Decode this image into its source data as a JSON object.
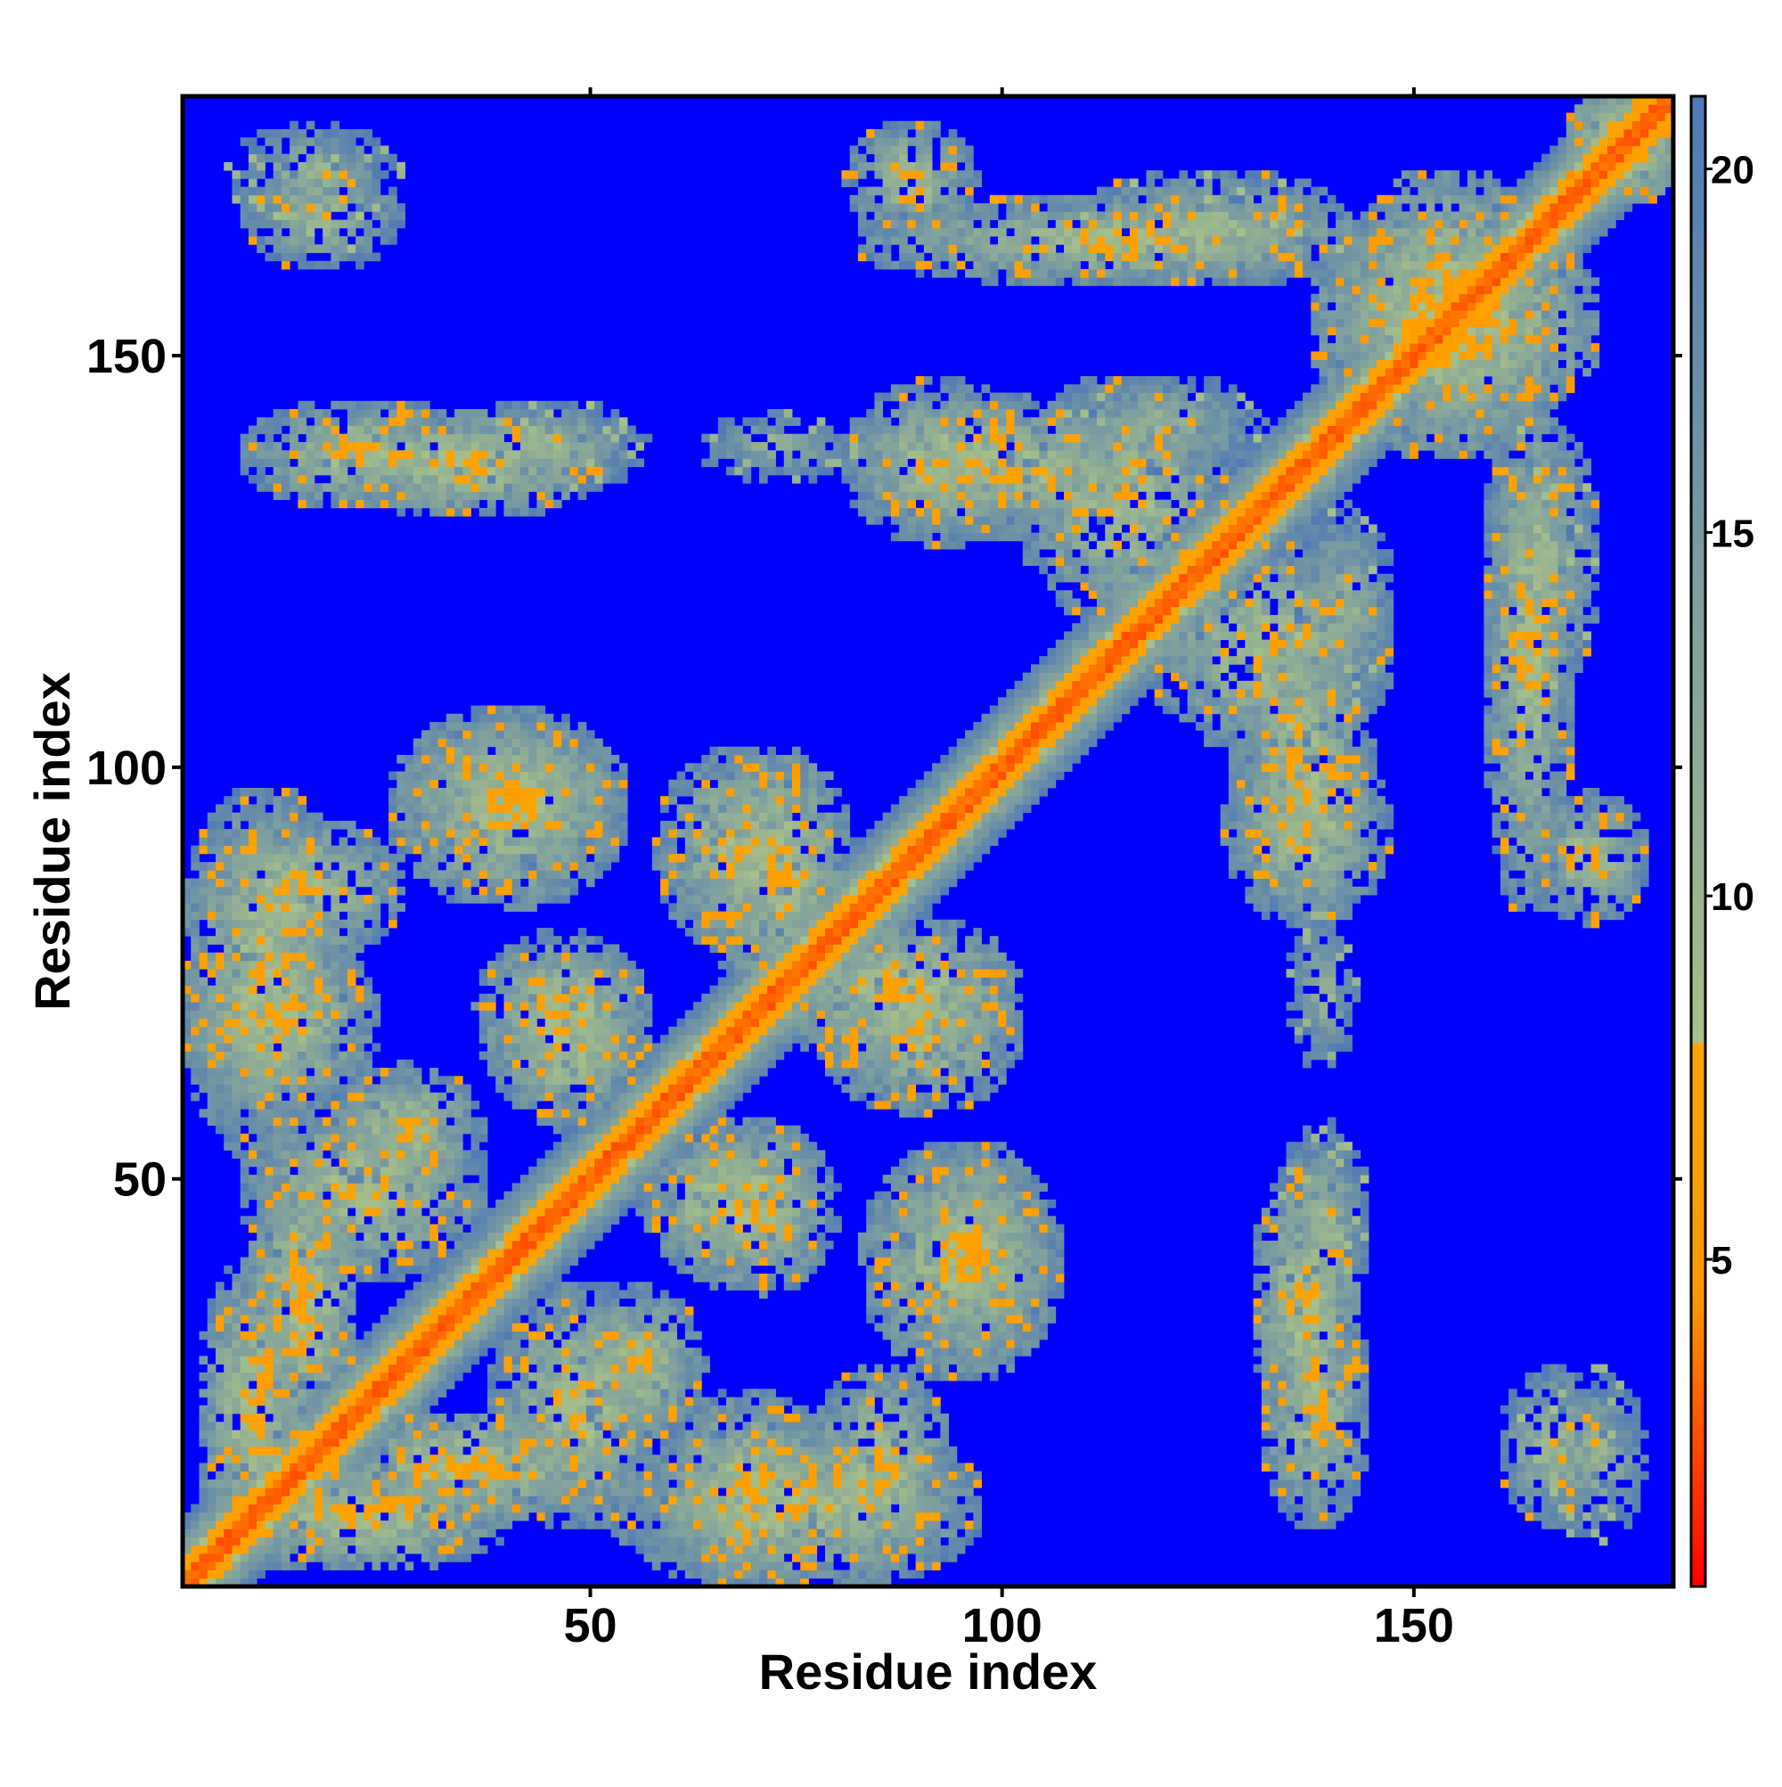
{
  "chart_data": {
    "type": "heatmap",
    "title": "",
    "xlabel": "Residue index",
    "ylabel": "Residue index",
    "n_residues": 181,
    "xlim": [
      1,
      181
    ],
    "ylim": [
      1,
      181
    ],
    "x_ticks": [
      50,
      100,
      150
    ],
    "y_ticks": [
      50,
      100,
      150
    ],
    "colorbar": {
      "range": [
        0.5,
        21
      ],
      "ticks": [
        5,
        10,
        15,
        20
      ],
      "cutoff": 8,
      "colors": {
        "low": "#ff0000",
        "mid_low": "#ff9900",
        "contact_edge": "#ffa500",
        "high_start": "#a8c08a",
        "high_end": "#4f79b5",
        "background": "#0000ff"
      }
    },
    "value_scale": "distance",
    "diagonal": {
      "band_width_residues": 3,
      "core_value": 2.5
    },
    "contact_regions": [
      {
        "x": [
          4,
          14
        ],
        "y": [
          5,
          38
        ],
        "peak": 6.5
      },
      {
        "x": [
          10,
          20
        ],
        "y": [
          20,
          50
        ],
        "peak": 6
      },
      {
        "x": [
          2,
          18
        ],
        "y": [
          55,
          95
        ],
        "peak": 7
      },
      {
        "x": [
          20,
          35
        ],
        "y": [
          50,
          62
        ],
        "peak": 7
      },
      {
        "x": [
          30,
          52
        ],
        "y": [
          90,
          104
        ],
        "peak": 6.5
      },
      {
        "x": [
          38,
          55
        ],
        "y": [
          62,
          78
        ],
        "peak": 6.5
      },
      {
        "x": [
          40,
          58
        ],
        "y": [
          10,
          35
        ],
        "peak": 7
      },
      {
        "x": [
          58,
          72
        ],
        "y": [
          40,
          55
        ],
        "peak": 7
      },
      {
        "x": [
          60,
          78
        ],
        "y": [
          2,
          22
        ],
        "peak": 6.5
      },
      {
        "x": [
          60,
          75
        ],
        "y": [
          80,
          100
        ],
        "peak": 7
      },
      {
        "x": [
          75,
          100
        ],
        "y": [
          65,
          80
        ],
        "peak": 6
      },
      {
        "x": [
          78,
          92
        ],
        "y": [
          5,
          25
        ],
        "peak": 6.5
      },
      {
        "x": [
          85,
          105
        ],
        "y": [
          28,
          52
        ],
        "peak": 6.5
      },
      {
        "x": [
          8,
          25
        ],
        "y": [
          167,
          177
        ],
        "peak": 9.5
      },
      {
        "x": [
          10,
          35
        ],
        "y": [
          133,
          143
        ],
        "peak": 7
      },
      {
        "x": [
          35,
          55
        ],
        "y": [
          135,
          143
        ],
        "peak": 9
      },
      {
        "x": [
          65,
          80
        ],
        "y": [
          136,
          142
        ],
        "peak": 10
      },
      {
        "x": [
          83,
          102
        ],
        "y": [
          129,
          145
        ],
        "peak": 7
      },
      {
        "x": [
          83,
          95
        ],
        "y": [
          166,
          177
        ],
        "peak": 7
      },
      {
        "x": [
          104,
          125
        ],
        "y": [
          120,
          145
        ],
        "peak": 7
      },
      {
        "x": [
          110,
          140
        ],
        "y": [
          160,
          171
        ],
        "peak": 8
      },
      {
        "x": [
          130,
          143
        ],
        "y": [
          85,
          115
        ],
        "peak": 6.5
      },
      {
        "x": [
          132,
          142
        ],
        "y": [
          20,
          50
        ],
        "peak": 6.5
      },
      {
        "x": [
          137,
          146
        ],
        "y": [
          110,
          130
        ],
        "peak": 9
      },
      {
        "x": [
          143,
          165
        ],
        "y": [
          140,
          170
        ],
        "peak": 5.5
      },
      {
        "x": [
          160,
          168
        ],
        "y": [
          85,
          145
        ],
        "peak": 7
      },
      {
        "x": [
          162,
          172
        ],
        "y": [
          10,
          25
        ],
        "peak": 8
      },
      {
        "x": [
          170,
          181
        ],
        "y": [
          170,
          181
        ],
        "peak": 5
      }
    ]
  }
}
